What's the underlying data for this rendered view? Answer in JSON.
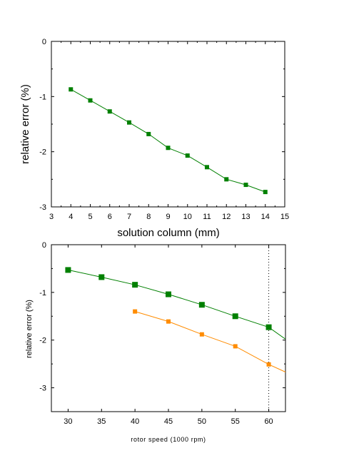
{
  "chart_data": [
    {
      "type": "line",
      "xlabel": "solution column (mm)",
      "ylabel": "relative error (%)",
      "xlim": [
        3,
        15
      ],
      "ylim": [
        -3,
        0
      ],
      "xticks": [
        3,
        4,
        5,
        6,
        7,
        8,
        9,
        10,
        11,
        12,
        13,
        14,
        15
      ],
      "yticks": [
        -3,
        -2,
        -1,
        0
      ],
      "grid": false,
      "series": [
        {
          "color": "#008000",
          "marker": "square",
          "x": [
            4,
            5,
            6,
            7,
            8,
            9,
            10,
            11,
            12,
            13,
            14
          ],
          "y": [
            -0.87,
            -1.07,
            -1.27,
            -1.47,
            -1.68,
            -1.93,
            -2.07,
            -2.28,
            -2.5,
            -2.6,
            -2.73
          ]
        }
      ]
    },
    {
      "type": "line",
      "xlabel": "rotor speed (1000 rpm)",
      "ylabel": "relative error (%)",
      "xlim": [
        27.5,
        62.5
      ],
      "ylim": [
        -3.5,
        0
      ],
      "xticks": [
        30,
        35,
        40,
        45,
        50,
        55,
        60
      ],
      "yticks": [
        -3,
        -2,
        -1,
        0
      ],
      "reference_line_x": 60,
      "grid": false,
      "series": [
        {
          "color": "#008000",
          "marker": "square",
          "x": [
            30,
            35,
            40,
            45,
            50,
            55,
            60,
            62.5
          ],
          "y": [
            -0.53,
            -0.68,
            -0.84,
            -1.04,
            -1.26,
            -1.5,
            -1.73,
            -1.98
          ],
          "marked_points": 7
        },
        {
          "color": "#ff8c00",
          "marker": "square",
          "x": [
            40,
            45,
            50,
            55,
            60,
            62.5
          ],
          "y": [
            -1.4,
            -1.61,
            -1.88,
            -2.13,
            -2.51,
            -2.67
          ],
          "marked_points": 5
        }
      ]
    }
  ]
}
